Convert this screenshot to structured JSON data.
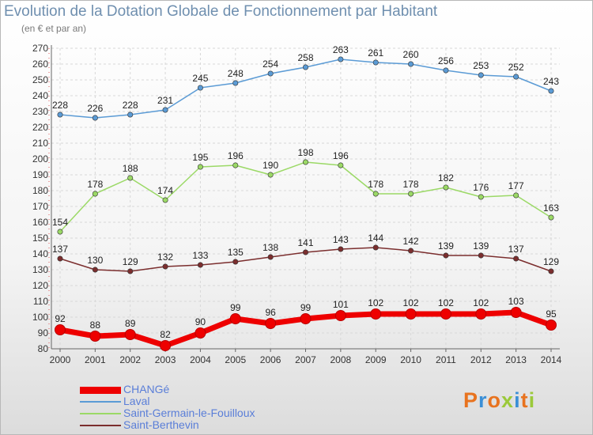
{
  "title": "Evolution de la Dotation Globale de Fonctionnement par Habitant",
  "subtitle": "(en € et par an)",
  "logo": {
    "text": "Proxiti",
    "colors": [
      "#e8731f",
      "#3b8fd6",
      "#e8731f",
      "#9bc93a",
      "#3b8fd6",
      "#e8731f",
      "#9bc93a"
    ]
  },
  "chart_data": {
    "type": "line",
    "x": [
      "2000",
      "2001",
      "2002",
      "2003",
      "2004",
      "2005",
      "2006",
      "2007",
      "2008",
      "2009",
      "2010",
      "2011",
      "2012",
      "2013",
      "2014"
    ],
    "ylim": [
      80,
      270
    ],
    "yticks": [
      80,
      90,
      100,
      110,
      120,
      130,
      140,
      150,
      160,
      170,
      180,
      190,
      200,
      210,
      220,
      230,
      240,
      250,
      260,
      270
    ],
    "grid": true,
    "legend_position": "bottom-left",
    "series": [
      {
        "name": "Laval",
        "color": "#5b9bd5",
        "values": [
          228,
          226,
          228,
          231,
          245,
          248,
          254,
          258,
          263,
          261,
          260,
          256,
          253,
          252,
          243
        ]
      },
      {
        "name": "Saint-Germain-le-Fouilloux",
        "color": "#9bd966",
        "values": [
          154,
          178,
          188,
          174,
          195,
          196,
          190,
          198,
          196,
          178,
          178,
          182,
          176,
          177,
          163
        ]
      },
      {
        "name": "Saint-Berthevin",
        "color": "#7b2e2e",
        "values": [
          137,
          130,
          129,
          132,
          133,
          135,
          138,
          141,
          143,
          144,
          142,
          139,
          139,
          137,
          129
        ]
      },
      {
        "name": "CHANGé",
        "color": "#ee0000",
        "values": [
          92,
          88,
          89,
          82,
          90,
          99,
          96,
          99,
          101,
          102,
          102,
          102,
          102,
          103,
          95
        ]
      }
    ]
  }
}
